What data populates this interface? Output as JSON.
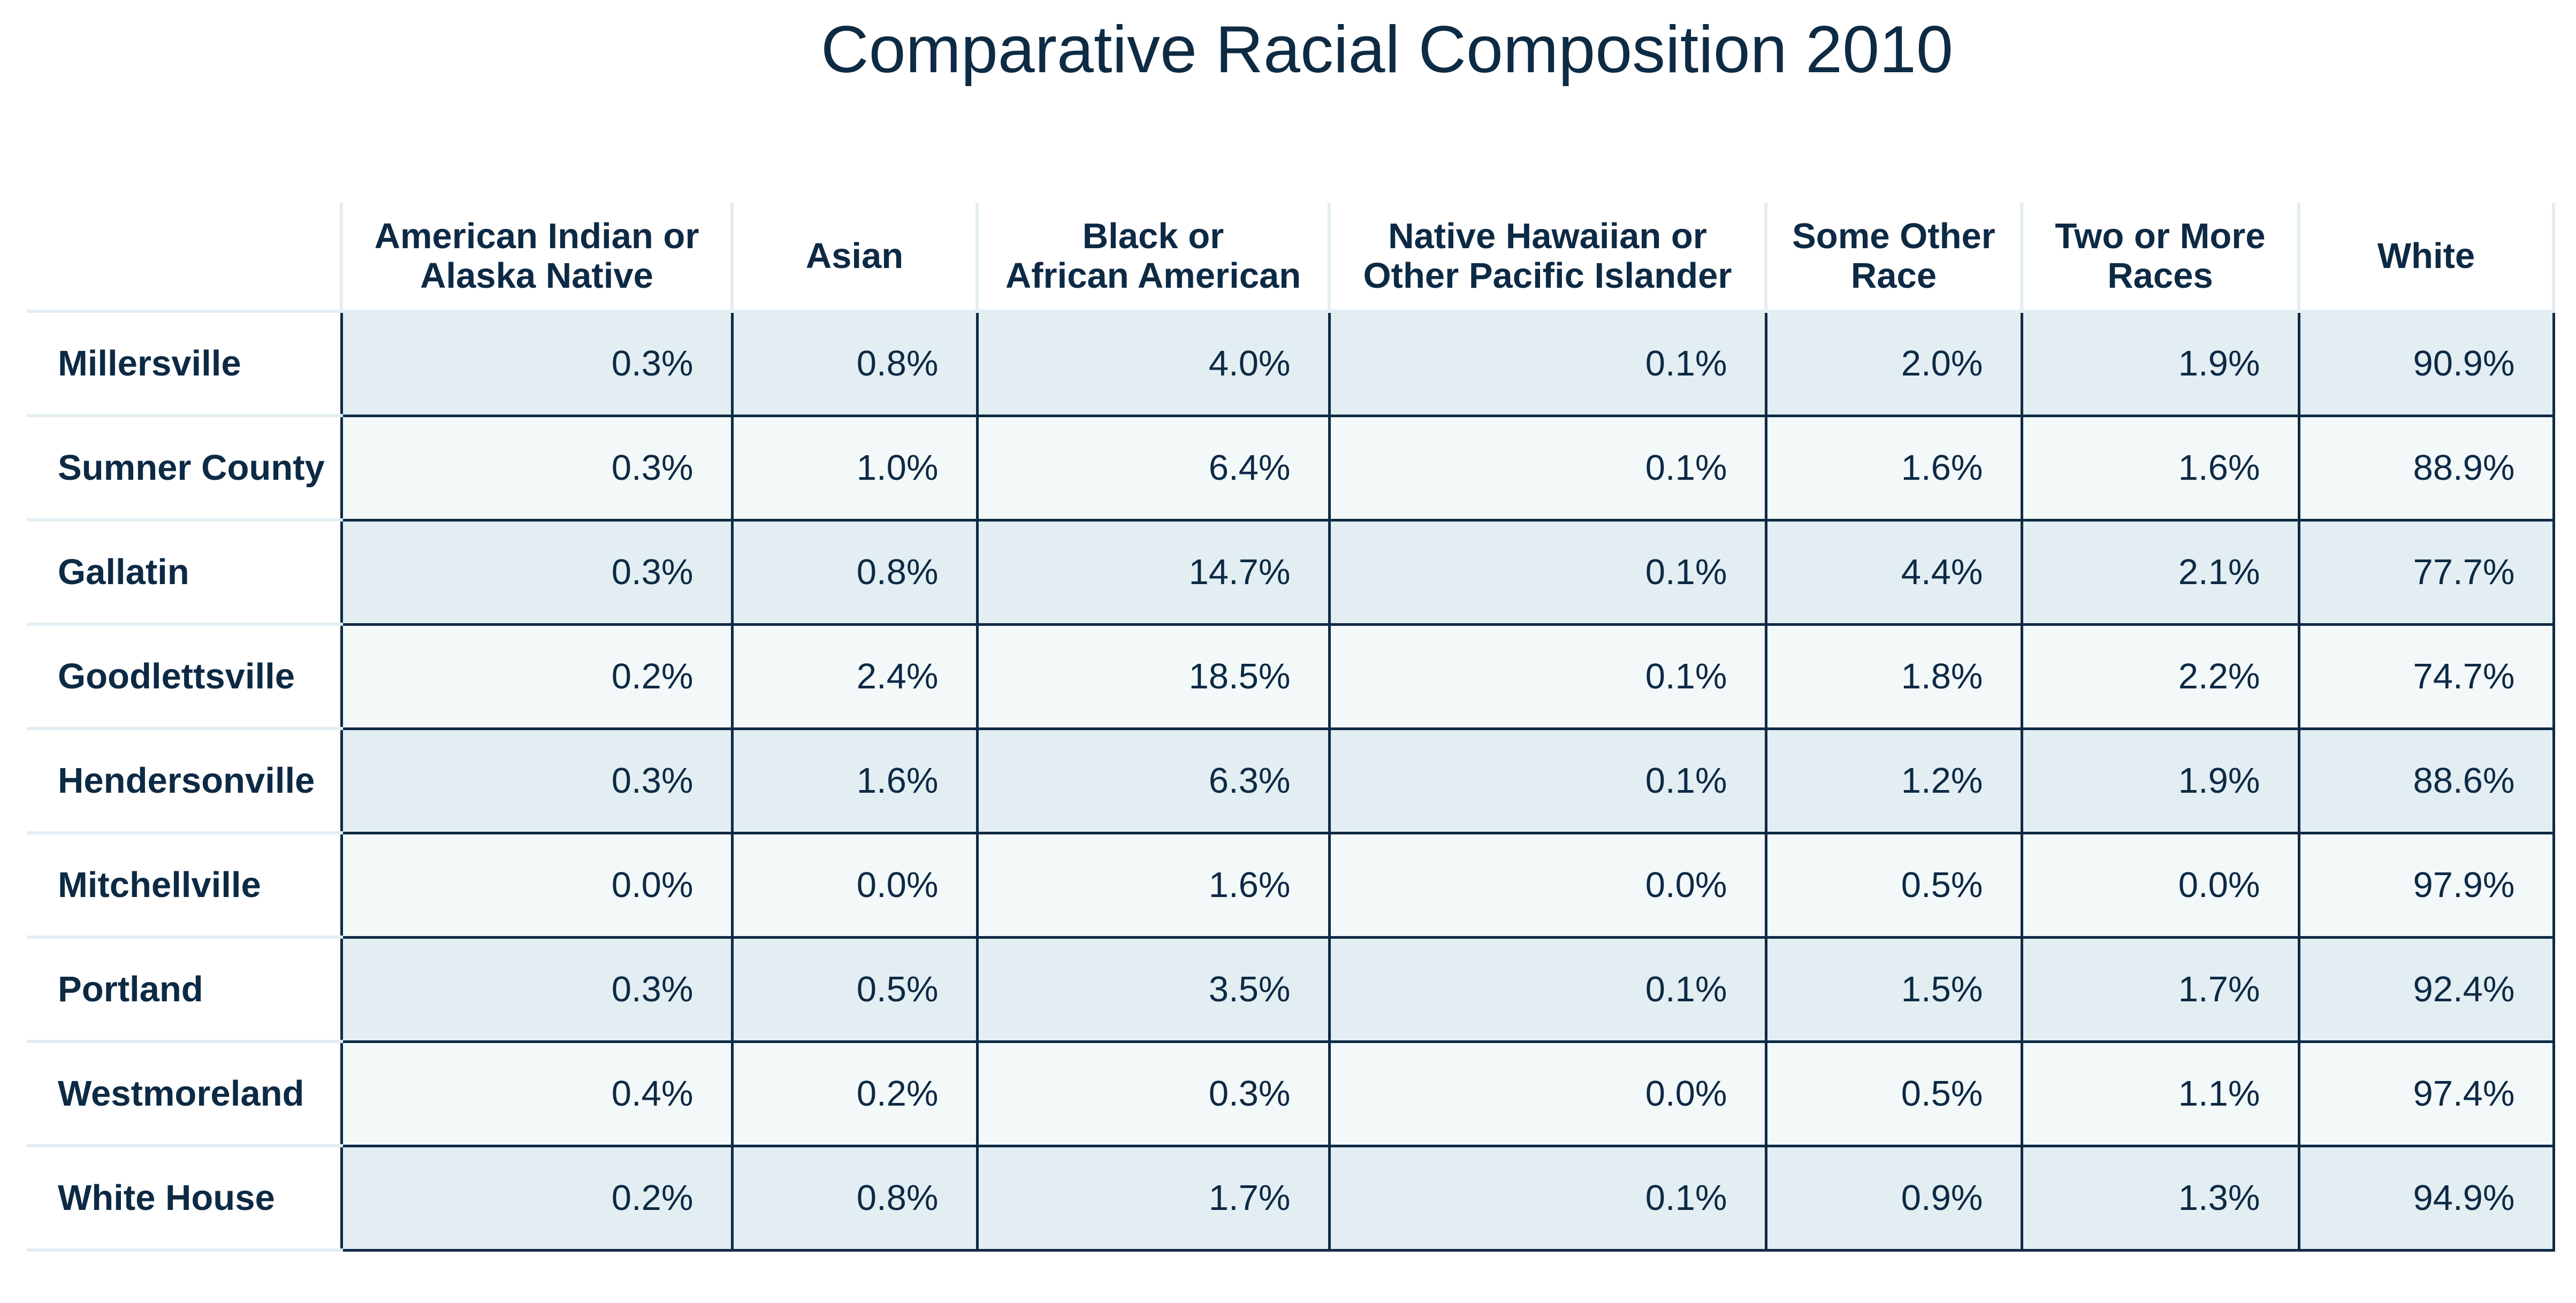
{
  "title": "Comparative Racial Composition 2010",
  "columns": [
    [
      "American Indian or",
      "Alaska Native"
    ],
    [
      "Asian"
    ],
    [
      "Black or",
      "African American"
    ],
    [
      "Native Hawaiian or",
      "Other Pacific Islander"
    ],
    [
      "Some Other",
      "Race"
    ],
    [
      "Two or More",
      "Races"
    ],
    [
      "White"
    ]
  ],
  "rows": [
    {
      "label": "Millersville",
      "values": [
        "0.3%",
        "0.8%",
        "4.0%",
        "0.1%",
        "2.0%",
        "1.9%",
        "90.9%"
      ]
    },
    {
      "label": "Sumner County",
      "values": [
        "0.3%",
        "1.0%",
        "6.4%",
        "0.1%",
        "1.6%",
        "1.6%",
        "88.9%"
      ]
    },
    {
      "label": "Gallatin",
      "values": [
        "0.3%",
        "0.8%",
        "14.7%",
        "0.1%",
        "4.4%",
        "2.1%",
        "77.7%"
      ]
    },
    {
      "label": "Goodlettsville",
      "values": [
        "0.2%",
        "2.4%",
        "18.5%",
        "0.1%",
        "1.8%",
        "2.2%",
        "74.7%"
      ]
    },
    {
      "label": "Hendersonville",
      "values": [
        "0.3%",
        "1.6%",
        "6.3%",
        "0.1%",
        "1.2%",
        "1.9%",
        "88.6%"
      ]
    },
    {
      "label": "Mitchellville",
      "values": [
        "0.0%",
        "0.0%",
        "1.6%",
        "0.0%",
        "0.5%",
        "0.0%",
        "97.9%"
      ]
    },
    {
      "label": "Portland",
      "values": [
        "0.3%",
        "0.5%",
        "3.5%",
        "0.1%",
        "1.5%",
        "1.7%",
        "92.4%"
      ]
    },
    {
      "label": "Westmoreland",
      "values": [
        "0.4%",
        "0.2%",
        "0.3%",
        "0.0%",
        "0.5%",
        "1.1%",
        "97.4%"
      ]
    },
    {
      "label": "White House",
      "values": [
        "0.2%",
        "0.8%",
        "1.7%",
        "0.1%",
        "0.9%",
        "1.3%",
        "94.9%"
      ]
    }
  ],
  "colors": {
    "text": "#0d2a45",
    "cell_border": "#0f2a45",
    "row_shade_dark": "#e2eef2",
    "row_shade_light": "#f3f8f9",
    "divider": "#e3eef3"
  }
}
